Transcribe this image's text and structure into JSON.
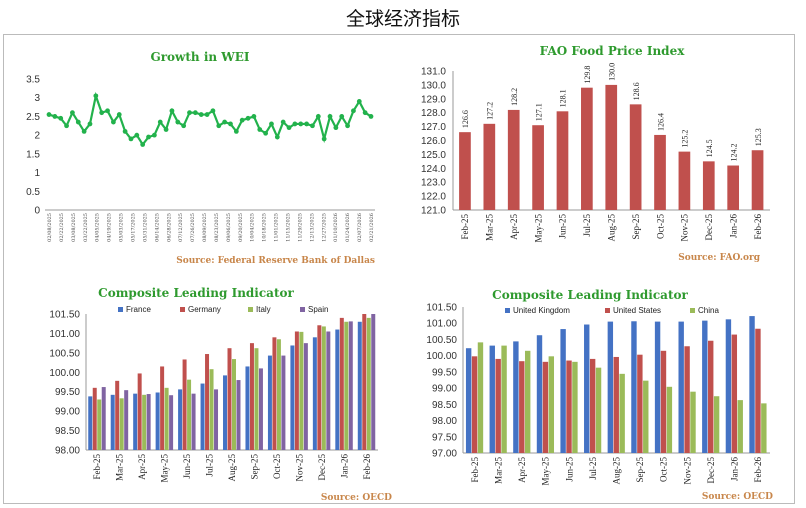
{
  "page_title": "全球经济指标",
  "chart_data": [
    {
      "id": "wei",
      "type": "line",
      "title": "Growth in WEI",
      "source": "Source: Federal Reserve Bank of Dallas",
      "ylim": [
        0,
        3.5
      ],
      "yticks": [
        "0",
        "0.5",
        "1",
        "1.5",
        "2",
        "2.5",
        "3",
        "3.5"
      ],
      "x_tick_labels": [
        "02/08/2025",
        "02/22/2025",
        "03/08/2025",
        "03/22/2025",
        "04/05/2025",
        "04/19/2025",
        "05/03/2025",
        "05/17/2025",
        "05/31/2025",
        "06/14/2025",
        "06/28/2025",
        "07/12/2025",
        "07/26/2025",
        "08/09/2025",
        "08/23/2025",
        "09/06/2025",
        "09/20/2025",
        "10/04/2025",
        "10/18/2025",
        "11/01/2025",
        "11/15/2025",
        "11/29/2025",
        "12/13/2025",
        "12/27/2025",
        "01/10/2026",
        "01/24/2026",
        "02/07/2026",
        "02/21/2026"
      ],
      "values": [
        2.55,
        2.5,
        2.45,
        2.25,
        2.6,
        2.35,
        2.1,
        2.3,
        3.05,
        2.6,
        2.65,
        2.35,
        2.55,
        2.1,
        1.9,
        2.0,
        1.75,
        1.95,
        2.0,
        2.35,
        2.15,
        2.65,
        2.35,
        2.25,
        2.6,
        2.6,
        2.55,
        2.55,
        2.65,
        2.25,
        2.35,
        2.3,
        2.1,
        2.4,
        2.45,
        2.5,
        2.15,
        2.05,
        2.3,
        1.95,
        2.35,
        2.2,
        2.3,
        2.3,
        2.3,
        2.25,
        2.5,
        1.9,
        2.5,
        2.2,
        2.5,
        2.25,
        2.65,
        2.9,
        2.6,
        2.5
      ],
      "color": "#22b24c"
    },
    {
      "id": "fao",
      "type": "bar",
      "title": "FAO Food Price Index",
      "source": "Source: FAO.org",
      "ylim": [
        121,
        131
      ],
      "yticks": [
        "121.0",
        "122.0",
        "123.0",
        "124.0",
        "125.0",
        "126.0",
        "127.0",
        "128.0",
        "129.0",
        "130.0",
        "131.0"
      ],
      "categories": [
        "Feb-25",
        "Mar-25",
        "Apr-25",
        "May-25",
        "Jun-25",
        "Jul-25",
        "Aug-25",
        "Sep-25",
        "Oct-25",
        "Nov-25",
        "Dec-25",
        "Jan-26",
        "Feb-26"
      ],
      "series": [
        {
          "name": "FAO Food Price Index",
          "values": [
            126.6,
            127.2,
            128.2,
            127.1,
            128.1,
            129.8,
            130.0,
            128.6,
            126.4,
            125.2,
            124.5,
            124.2,
            125.3
          ],
          "color": "#c0504d"
        }
      ],
      "data_labels": [
        "126.6",
        "127.2",
        "128.2",
        "127.1",
        "128.1",
        "129.8",
        "130.0",
        "128.6",
        "126.4",
        "125.2",
        "124.5",
        "124.2",
        "125.3"
      ]
    },
    {
      "id": "cli-eu",
      "type": "bar",
      "title": "Composite Leading Indicator",
      "source": "Source: OECD",
      "ylim": [
        98,
        101.5
      ],
      "yticks": [
        "98.00",
        "98.50",
        "99.00",
        "99.50",
        "100.00",
        "100.50",
        "101.00",
        "101.50"
      ],
      "legend": "top",
      "categories": [
        "Feb-25",
        "Mar-25",
        "Apr-25",
        "May-25",
        "Jun-25",
        "Jul-25",
        "Aug-25",
        "Sep-25",
        "Oct-25",
        "Nov-25",
        "Dec-25",
        "Jan-26",
        "Feb-26"
      ],
      "series": [
        {
          "name": "France",
          "color": "#4472c4",
          "values": [
            99.38,
            99.42,
            99.45,
            99.48,
            99.56,
            99.71,
            99.92,
            100.15,
            100.43,
            100.69,
            100.9,
            101.1,
            101.3
          ]
        },
        {
          "name": "Germany",
          "color": "#c0504d",
          "values": [
            99.6,
            99.78,
            99.97,
            100.15,
            100.33,
            100.47,
            100.62,
            100.75,
            100.9,
            101.05,
            101.21,
            101.4,
            101.5
          ]
        },
        {
          "name": "Italy",
          "color": "#9bbb59",
          "values": [
            99.3,
            99.33,
            99.42,
            99.6,
            99.81,
            100.08,
            100.34,
            100.62,
            100.85,
            101.04,
            101.18,
            101.3,
            101.4
          ]
        },
        {
          "name": "Spain",
          "color": "#8064a2",
          "values": [
            99.62,
            99.54,
            99.44,
            99.41,
            99.45,
            99.56,
            99.8,
            100.1,
            100.43,
            100.75,
            101.05,
            101.31,
            101.5
          ]
        }
      ]
    },
    {
      "id": "cli-major",
      "type": "bar",
      "title": "Composite Leading Indicator",
      "source": "Source: OECD",
      "ylim": [
        97,
        101.5
      ],
      "yticks": [
        "97.00",
        "97.50",
        "98.00",
        "98.50",
        "99.00",
        "99.50",
        "100.00",
        "100.50",
        "101.00",
        "101.50"
      ],
      "legend": "top",
      "categories": [
        "Feb-25",
        "Mar-25",
        "Apr-25",
        "May-25",
        "Jun-25",
        "Jul-25",
        "Aug-25",
        "Sep-25",
        "Oct-25",
        "Nov-25",
        "Dec-25",
        "Jan-26",
        "Feb-26"
      ],
      "series": [
        {
          "name": "United Kingdom",
          "color": "#4472c4",
          "values": [
            100.23,
            100.31,
            100.44,
            100.63,
            100.82,
            100.96,
            101.05,
            101.06,
            101.05,
            101.05,
            101.08,
            101.12,
            101.22
          ]
        },
        {
          "name": "United States",
          "color": "#c0504d",
          "values": [
            99.98,
            99.9,
            99.83,
            99.81,
            99.85,
            99.9,
            99.96,
            100.03,
            100.15,
            100.29,
            100.46,
            100.65,
            100.83
          ]
        },
        {
          "name": "China",
          "color": "#9bbb59",
          "values": [
            100.41,
            100.31,
            100.15,
            99.98,
            99.81,
            99.63,
            99.44,
            99.23,
            99.04,
            98.89,
            98.75,
            98.63,
            98.53
          ]
        }
      ]
    }
  ]
}
